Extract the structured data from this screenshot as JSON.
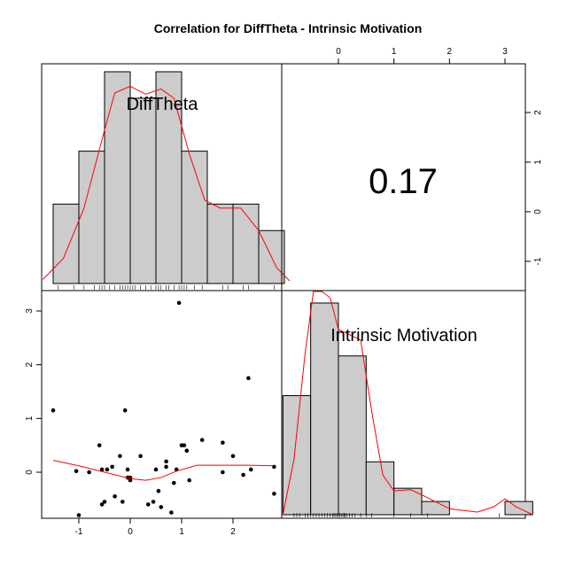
{
  "chart_data": {
    "type": "pairs",
    "title": "Correlation  for DiffTheta - Intrinsic Motivation",
    "correlation_label": "0.17",
    "variables": [
      "DiffTheta",
      "Intrinsic Motivation"
    ],
    "x_ticks": [
      -1,
      0,
      1,
      2
    ],
    "y_ticks": [
      0,
      1,
      2,
      3
    ],
    "top_ticks": [
      0,
      1,
      2,
      3
    ],
    "right_ticks": [
      -1,
      0,
      1,
      2
    ],
    "hist_difftheta": {
      "bin_edges": [
        -1.5,
        -1.0,
        -0.5,
        0.0,
        0.5,
        1.0,
        1.5,
        2.0,
        2.5,
        3.0
      ],
      "counts": [
        3,
        5,
        8,
        7,
        8,
        5,
        3,
        3,
        2
      ],
      "density_curve": [
        [
          -1.7,
          0.15
        ],
        [
          -1.3,
          0.95
        ],
        [
          -0.9,
          2.85
        ],
        [
          -0.5,
          5.8
        ],
        [
          -0.3,
          7.2
        ],
        [
          0.0,
          7.45
        ],
        [
          0.3,
          7.15
        ],
        [
          0.6,
          7.35
        ],
        [
          0.85,
          7.0
        ],
        [
          1.15,
          4.9
        ],
        [
          1.45,
          3.15
        ],
        [
          1.75,
          2.85
        ],
        [
          2.15,
          2.85
        ],
        [
          2.5,
          2.0
        ],
        [
          2.85,
          0.6
        ],
        [
          3.1,
          0.1
        ]
      ],
      "rug": [
        -1.4,
        -1.1,
        -0.9,
        -0.7,
        -0.6,
        -0.55,
        -0.5,
        -0.4,
        -0.3,
        -0.2,
        -0.15,
        -0.1,
        -0.05,
        0.0,
        0.05,
        0.1,
        0.2,
        0.3,
        0.4,
        0.5,
        0.55,
        0.6,
        0.7,
        0.75,
        0.85,
        0.95,
        1.0,
        1.05,
        1.1,
        1.25,
        1.4,
        1.8,
        1.9,
        2.2,
        2.3,
        2.8
      ]
    },
    "hist_motivation": {
      "bin_edges": [
        -1.0,
        -0.5,
        0.0,
        0.5,
        1.0,
        1.5,
        2.0,
        2.5,
        3.0,
        3.5
      ],
      "counts": [
        9,
        16,
        12,
        4,
        2,
        1,
        0,
        0,
        1
      ],
      "density_curve": [
        [
          -1.0,
          0.0
        ],
        [
          -0.8,
          4.2
        ],
        [
          -0.6,
          12.2
        ],
        [
          -0.45,
          17.4
        ],
        [
          -0.3,
          18.8
        ],
        [
          -0.15,
          16.4
        ],
        [
          0.0,
          14.0
        ],
        [
          0.2,
          13.6
        ],
        [
          0.4,
          13.2
        ],
        [
          0.6,
          7.8
        ],
        [
          0.8,
          3.0
        ],
        [
          1.0,
          1.8
        ],
        [
          1.3,
          1.9
        ],
        [
          1.6,
          1.3
        ],
        [
          2.0,
          0.45
        ],
        [
          2.5,
          0.2
        ],
        [
          2.8,
          0.6
        ],
        [
          3.0,
          1.2
        ],
        [
          3.2,
          0.6
        ],
        [
          3.5,
          0.0
        ]
      ],
      "rug": [
        -0.8,
        -0.75,
        -0.7,
        -0.6,
        -0.55,
        -0.5,
        -0.45,
        -0.4,
        -0.35,
        -0.3,
        -0.25,
        -0.2,
        -0.15,
        -0.1,
        -0.08,
        -0.05,
        -0.02,
        0.0,
        0.02,
        0.05,
        0.08,
        0.1,
        0.12,
        0.15,
        0.2,
        0.25,
        0.3,
        0.4,
        0.5,
        0.6,
        1.0,
        1.3,
        1.6,
        2.9
      ]
    },
    "scatter_points": [
      [
        -1.5,
        1.15
      ],
      [
        -1.05,
        0.02
      ],
      [
        -1.0,
        -0.8
      ],
      [
        -0.8,
        0.0
      ],
      [
        -0.6,
        0.5
      ],
      [
        -0.55,
        0.05
      ],
      [
        -0.55,
        -0.6
      ],
      [
        -0.5,
        -0.55
      ],
      [
        -0.45,
        0.05
      ],
      [
        -0.35,
        0.1
      ],
      [
        -0.3,
        -0.45
      ],
      [
        -0.2,
        0.3
      ],
      [
        -0.15,
        -0.55
      ],
      [
        -0.1,
        1.15
      ],
      [
        -0.05,
        0.05
      ],
      [
        -0.05,
        -0.1
      ],
      [
        0.0,
        -0.15
      ],
      [
        0.0,
        -0.1
      ],
      [
        0.2,
        0.3
      ],
      [
        0.35,
        -0.6
      ],
      [
        0.45,
        -0.55
      ],
      [
        0.5,
        0.05
      ],
      [
        0.55,
        -0.35
      ],
      [
        0.6,
        -0.65
      ],
      [
        0.7,
        0.2
      ],
      [
        0.7,
        0.1
      ],
      [
        0.8,
        -0.75
      ],
      [
        0.85,
        -0.2
      ],
      [
        0.9,
        0.05
      ],
      [
        0.95,
        3.15
      ],
      [
        1.0,
        0.5
      ],
      [
        1.05,
        0.5
      ],
      [
        1.1,
        0.4
      ],
      [
        1.15,
        -0.15
      ],
      [
        1.4,
        0.6
      ],
      [
        1.8,
        0.55
      ],
      [
        1.8,
        0.0
      ],
      [
        2.0,
        0.3
      ],
      [
        2.2,
        -0.05
      ],
      [
        2.3,
        1.75
      ],
      [
        2.35,
        0.05
      ],
      [
        2.8,
        0.1
      ],
      [
        2.8,
        -0.4
      ]
    ],
    "smooth_line": [
      [
        -1.5,
        0.22
      ],
      [
        -1.0,
        0.12
      ],
      [
        -0.5,
        0.0
      ],
      [
        0.0,
        -0.12
      ],
      [
        0.3,
        -0.15
      ],
      [
        0.6,
        -0.1
      ],
      [
        0.9,
        0.02
      ],
      [
        1.3,
        0.13
      ],
      [
        1.8,
        0.13
      ],
      [
        2.3,
        0.13
      ],
      [
        2.8,
        0.12
      ]
    ],
    "grid": false,
    "series_colors": {
      "bars": "#cccccc",
      "density": "#ff0000",
      "points": "#000000",
      "smooth": "#ff0000"
    }
  }
}
